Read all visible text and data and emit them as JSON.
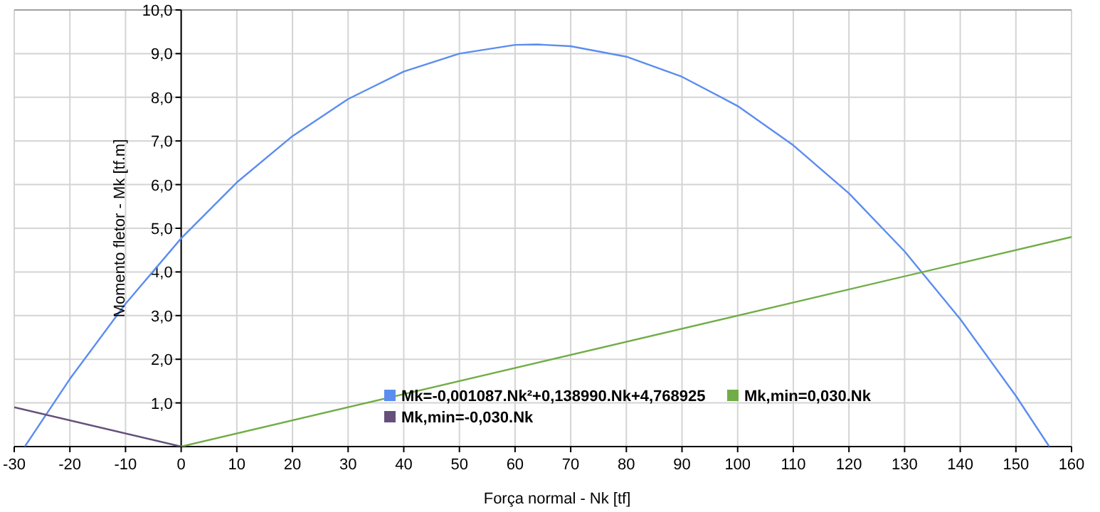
{
  "chart_data": {
    "type": "line",
    "xlabel": "Força normal - Nk [tf]",
    "ylabel": "Momento fletor - Mk [tf.m]",
    "xlim": [
      -30,
      160
    ],
    "ylim": [
      0,
      10
    ],
    "xticks": [
      -30,
      -20,
      -10,
      0,
      10,
      20,
      30,
      40,
      50,
      60,
      70,
      80,
      90,
      100,
      110,
      120,
      130,
      140,
      150,
      160
    ],
    "yticks": [
      {
        "value": 0,
        "label": null
      },
      {
        "value": 1,
        "label": "1,0"
      },
      {
        "value": 2,
        "label": "2,0"
      },
      {
        "value": 3,
        "label": "3,0"
      },
      {
        "value": 4,
        "label": "4,0"
      },
      {
        "value": 5,
        "label": "5,0"
      },
      {
        "value": 6,
        "label": "6,0"
      },
      {
        "value": 7,
        "label": "7,0"
      },
      {
        "value": 8,
        "label": "8,0"
      },
      {
        "value": 9,
        "label": "9,0"
      },
      {
        "value": 10,
        "label": "10,0"
      }
    ],
    "grid": true,
    "legend": "bottom",
    "marker": "none",
    "line_style": "solid",
    "series": [
      {
        "name": "Mk=-0,001087.Nk²+0,138990.Nk+4,768925",
        "color": "#5b8def",
        "x": [
          -28.1,
          -20,
          -10,
          0,
          10,
          20,
          30,
          40,
          50,
          60,
          64,
          70,
          80,
          90,
          100,
          110,
          120,
          130,
          140,
          150,
          156
        ],
        "values": [
          0,
          1.55,
          3.27,
          4.77,
          6.05,
          7.11,
          7.96,
          8.59,
          9.0,
          9.2,
          9.21,
          9.17,
          8.93,
          8.47,
          7.8,
          6.9,
          5.8,
          4.47,
          2.92,
          1.16,
          0
        ]
      },
      {
        "name": "Mk,min=0,030.Nk",
        "color": "#70ad47",
        "x": [
          0,
          160
        ],
        "values": [
          0,
          4.8
        ]
      },
      {
        "name": "Mk,min=-0,030.Nk",
        "color": "#65507a",
        "x": [
          -30,
          0
        ],
        "values": [
          0.9,
          0
        ]
      }
    ]
  }
}
